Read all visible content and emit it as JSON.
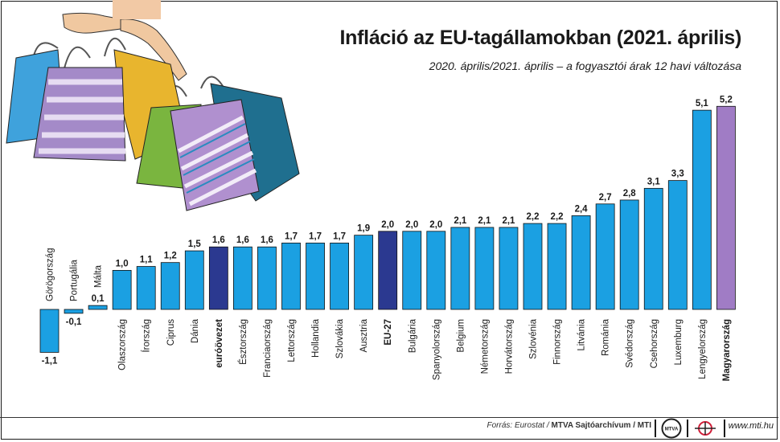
{
  "header": {
    "title": "Infláció az EU-tagállamokban (2021. április)",
    "subtitle": "2020. április/2021. április – a fogyasztói árak 12 havi változása"
  },
  "footer": {
    "source_prefix": "Forrás: Eurostat / ",
    "source_bold": "MTVA Sajtóarchívum / MTI",
    "logo_text": "MTVA",
    "url": "www.mti.hu"
  },
  "colors": {
    "standard": "#1ba0e2",
    "highlight_navy": "#2b3990",
    "highlight_hungary": "#a07cc5",
    "stroke": "#111111"
  },
  "chart_data": {
    "type": "bar",
    "title": "Infláció az EU-tagállamokban (2021. április)",
    "subtitle": "2020. április/2021. április – a fogyasztói árak 12 havi változása",
    "categories": [
      "Görögország",
      "Portugália",
      "Málta",
      "Olaszország",
      "Írország",
      "Ciprus",
      "Dánia",
      "euróövezet",
      "Észtország",
      "Franciaország",
      "Lettország",
      "Hollandia",
      "Szlovákia",
      "Ausztria",
      "EU-27",
      "Bulgária",
      "Spanyolország",
      "Belgium",
      "Németország",
      "Horvátország",
      "Szlovénia",
      "Finnország",
      "Litvánia",
      "Románia",
      "Svédország",
      "Csehország",
      "Luxemburg",
      "Lengyelország",
      "Magyarország"
    ],
    "value_labels": [
      "-1,1",
      "-0,1",
      "0,1",
      "1,0",
      "1,1",
      "1,2",
      "1,5",
      "1,6",
      "1,6",
      "1,6",
      "1,7",
      "1,7",
      "1,7",
      "1,9",
      "2,0",
      "2,0",
      "2,0",
      "2,1",
      "2,1",
      "2,1",
      "2,2",
      "2,2",
      "2,4",
      "2,7",
      "2,8",
      "3,1",
      "3,3",
      "5,1",
      "5,2"
    ],
    "values": [
      -1.1,
      -0.1,
      0.1,
      1.0,
      1.1,
      1.2,
      1.5,
      1.6,
      1.6,
      1.6,
      1.7,
      1.7,
      1.7,
      1.9,
      2.0,
      2.0,
      2.0,
      2.1,
      2.1,
      2.1,
      2.2,
      2.2,
      2.4,
      2.7,
      2.8,
      3.1,
      3.3,
      5.1,
      5.2
    ],
    "highlight": {
      "euróövezet": "navy",
      "EU-27": "navy",
      "Magyarország": "hungary"
    },
    "bold_labels": [
      "euróövezet",
      "EU-27",
      "Magyarország"
    ],
    "xlabel": "",
    "ylabel": "",
    "ylim": [
      -1.1,
      5.2
    ],
    "grid": false,
    "legend": "none"
  }
}
